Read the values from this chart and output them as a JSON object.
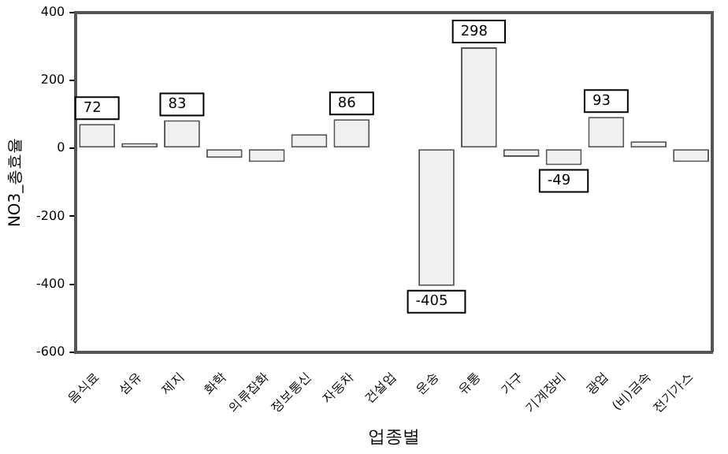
{
  "chart_data": {
    "type": "bar",
    "xlabel": "업종별",
    "ylabel": "NO3_총효율",
    "categories": [
      "음식료",
      "섬유",
      "제지",
      "화학",
      "의류잡화",
      "정보통신",
      "자동차",
      "건설업",
      "운송",
      "유통",
      "가구",
      "기계장비",
      "광업",
      "(비)금속",
      "전기가스"
    ],
    "values": [
      72,
      16,
      83,
      -28,
      -40,
      42,
      86,
      0,
      -405,
      298,
      -25,
      -49,
      93,
      21,
      -40
    ],
    "value_labels": [
      "72",
      null,
      "83",
      null,
      null,
      null,
      "86",
      null,
      "-405",
      "298",
      null,
      "-49",
      "93",
      null,
      null
    ],
    "color": "#f0f0f0",
    "ylim": [
      -600,
      400
    ],
    "yticks": [
      -600,
      -400,
      -200,
      0,
      200,
      400
    ],
    "grid": false,
    "legend": false
  }
}
